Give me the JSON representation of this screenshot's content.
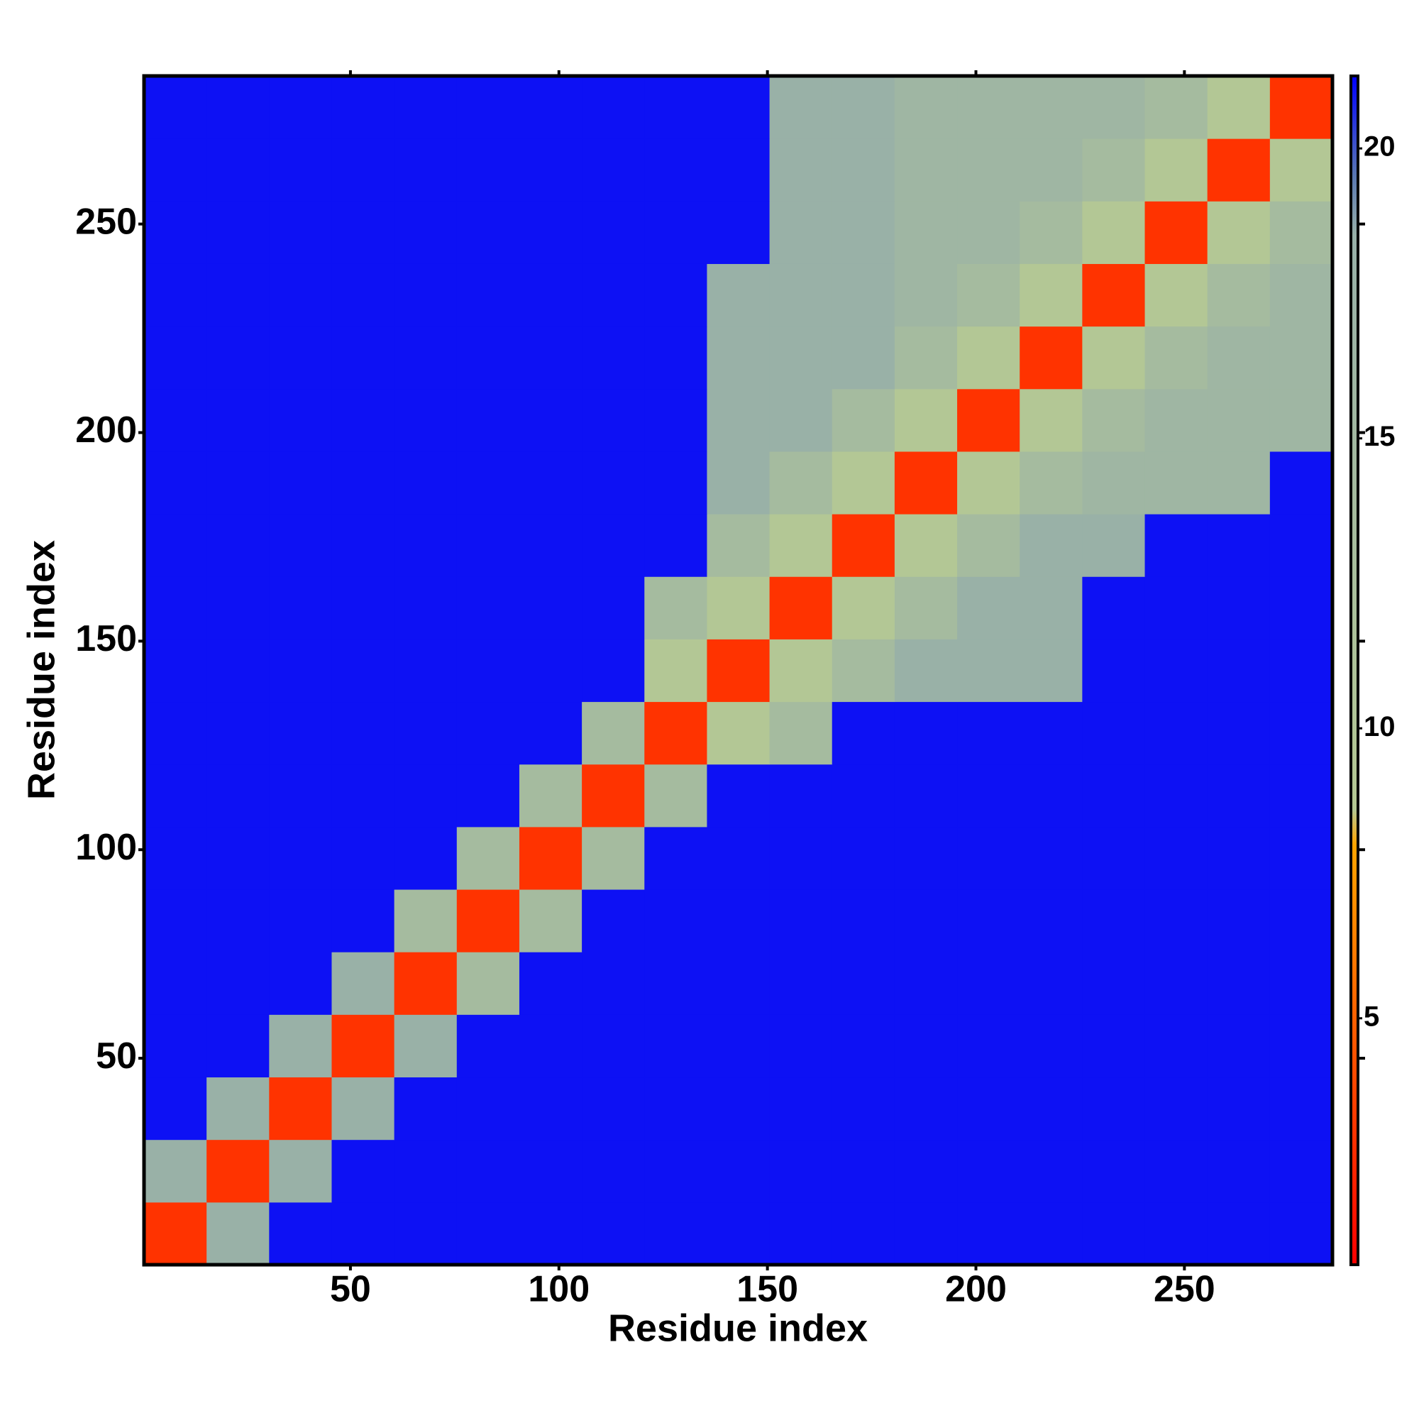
{
  "chart_data": {
    "type": "heatmap",
    "xlabel": "Residue index",
    "ylabel": "Residue index",
    "x": [
      8,
      23,
      38,
      53,
      68,
      83,
      98,
      113,
      128,
      143,
      158,
      173,
      188,
      203,
      218,
      233,
      248,
      263,
      278
    ],
    "y": [
      8,
      23,
      38,
      53,
      68,
      83,
      98,
      113,
      128,
      143,
      158,
      173,
      188,
      203,
      218,
      233,
      248,
      263,
      278
    ],
    "z": [
      [
        3,
        18,
        21,
        21,
        21,
        21,
        21,
        21,
        21,
        21,
        21,
        21,
        21,
        21,
        21,
        21,
        21,
        21,
        21
      ],
      [
        18,
        3,
        18,
        21,
        21,
        21,
        21,
        21,
        21,
        21,
        21,
        21,
        21,
        21,
        21,
        21,
        21,
        21,
        21
      ],
      [
        21,
        18,
        3,
        18,
        21,
        21,
        21,
        21,
        21,
        21,
        21,
        21,
        21,
        21,
        21,
        21,
        21,
        21,
        21
      ],
      [
        21,
        21,
        18,
        3,
        18,
        21,
        21,
        21,
        21,
        21,
        21,
        21,
        21,
        21,
        21,
        21,
        21,
        21,
        21
      ],
      [
        21,
        21,
        21,
        18,
        3,
        14,
        21,
        21,
        21,
        21,
        21,
        21,
        21,
        21,
        21,
        21,
        21,
        21,
        21
      ],
      [
        21,
        21,
        21,
        21,
        14,
        3,
        14,
        21,
        21,
        21,
        21,
        21,
        21,
        21,
        21,
        21,
        21,
        21,
        21
      ],
      [
        21,
        21,
        21,
        21,
        21,
        14,
        3,
        14,
        21,
        21,
        21,
        21,
        21,
        21,
        21,
        21,
        21,
        21,
        21
      ],
      [
        21,
        21,
        21,
        21,
        21,
        21,
        14,
        3,
        14,
        21,
        21,
        21,
        21,
        21,
        21,
        21,
        21,
        21,
        21
      ],
      [
        21,
        21,
        21,
        21,
        21,
        21,
        21,
        14,
        3,
        9,
        14,
        21,
        21,
        21,
        21,
        21,
        21,
        21,
        21
      ],
      [
        21,
        21,
        21,
        21,
        21,
        21,
        21,
        21,
        9,
        3,
        9,
        14,
        18,
        18,
        18,
        21,
        21,
        21,
        21
      ],
      [
        21,
        21,
        21,
        21,
        21,
        21,
        21,
        21,
        14,
        9,
        3,
        9,
        14,
        18,
        18,
        21,
        21,
        21,
        21
      ],
      [
        21,
        21,
        21,
        21,
        21,
        21,
        21,
        21,
        21,
        14,
        9,
        3,
        9,
        14,
        18,
        18,
        21,
        21,
        21
      ],
      [
        21,
        21,
        21,
        21,
        21,
        21,
        21,
        21,
        21,
        18,
        14,
        9,
        3,
        9,
        14,
        16,
        16,
        16,
        21
      ],
      [
        21,
        21,
        21,
        21,
        21,
        21,
        21,
        21,
        21,
        18,
        18,
        14,
        9,
        3,
        9,
        14,
        16,
        16,
        16
      ],
      [
        21,
        21,
        21,
        21,
        21,
        21,
        21,
        21,
        21,
        18,
        18,
        18,
        14,
        9,
        3,
        9,
        14,
        16,
        16
      ],
      [
        21,
        21,
        21,
        21,
        21,
        21,
        21,
        21,
        21,
        18,
        18,
        18,
        16,
        14,
        9,
        3,
        9,
        14,
        16
      ],
      [
        21,
        21,
        21,
        21,
        21,
        21,
        21,
        21,
        21,
        21,
        18,
        18,
        16,
        16,
        14,
        9,
        3,
        9,
        14
      ],
      [
        21,
        21,
        21,
        21,
        21,
        21,
        21,
        21,
        21,
        21,
        18,
        18,
        16,
        16,
        16,
        14,
        9,
        3,
        9
      ],
      [
        21,
        21,
        21,
        21,
        21,
        21,
        21,
        21,
        21,
        21,
        18,
        18,
        16,
        16,
        16,
        16,
        14,
        9,
        3
      ]
    ],
    "xlim": [
      0.5,
      285.5
    ],
    "ylim": [
      0.5,
      285.5
    ],
    "xticks": [
      50,
      100,
      150,
      200,
      250
    ],
    "yticks": [
      50,
      100,
      150,
      200,
      250
    ],
    "clim": [
      0.75,
      21.25
    ],
    "cticks": [
      5,
      10,
      15,
      20
    ],
    "colormap": [
      [
        0.75,
        "#ff0000"
      ],
      [
        8,
        "#ffa500"
      ],
      [
        8.6,
        "#b4c894"
      ],
      [
        18.5,
        "#98b0a8"
      ],
      [
        19.5,
        "#5a78b0"
      ],
      [
        21.25,
        "#0000ff"
      ]
    ]
  }
}
